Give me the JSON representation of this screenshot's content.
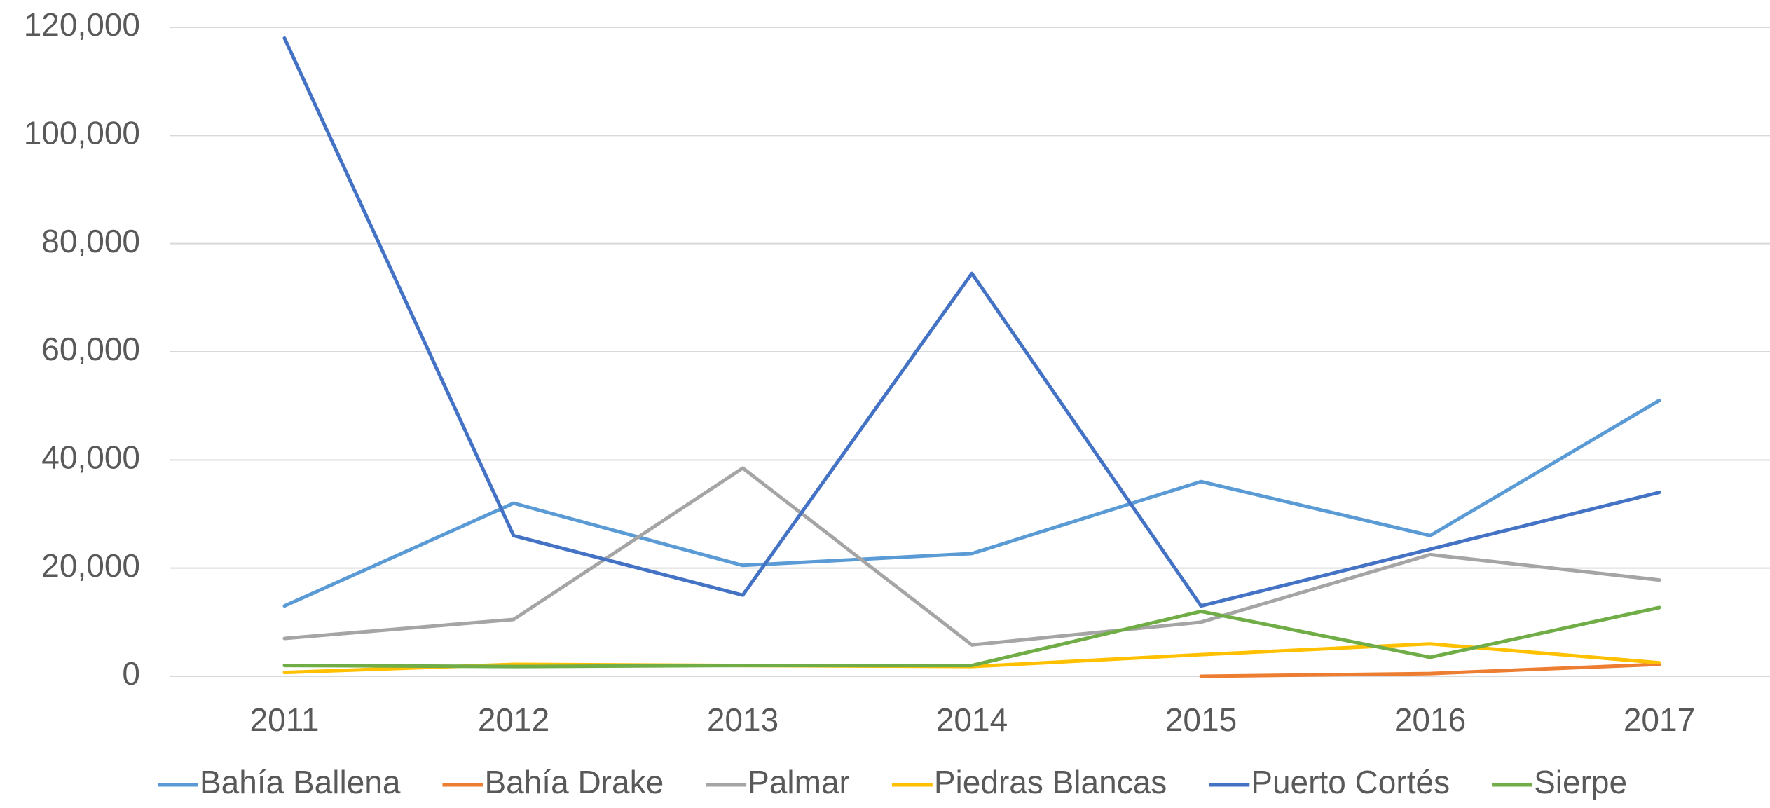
{
  "chart_data": {
    "type": "line",
    "categories": [
      "2011",
      "2012",
      "2013",
      "2014",
      "2015",
      "2016",
      "2017"
    ],
    "series": [
      {
        "name": "Bahía Ballena",
        "color": "#5b9bd5",
        "values": [
          13000,
          32000,
          20500,
          22700,
          36000,
          26000,
          51000
        ]
      },
      {
        "name": "Bahía Drake",
        "color": "#ed7d31",
        "values": [
          null,
          null,
          null,
          null,
          0,
          500,
          2200
        ]
      },
      {
        "name": "Palmar",
        "color": "#a5a5a5",
        "values": [
          7000,
          10500,
          38500,
          5800,
          10000,
          22500,
          17800
        ]
      },
      {
        "name": "Piedras Blancas",
        "color": "#ffc000",
        "values": [
          700,
          2200,
          2000,
          1800,
          4000,
          6000,
          2500
        ]
      },
      {
        "name": "Puerto Cortés",
        "color": "#4472c4",
        "values": [
          118000,
          26000,
          15000,
          74500,
          13000,
          23500,
          34000
        ]
      },
      {
        "name": "Sierpe",
        "color": "#70ad47",
        "values": [
          2000,
          1800,
          2000,
          2000,
          12000,
          3500,
          12700
        ]
      }
    ],
    "ylim": [
      0,
      120000
    ],
    "yticks": [
      0,
      {
        "value": 20000,
        "label": "20,000"
      },
      {
        "value": 40000,
        "label": "40,000"
      },
      {
        "value": 60000,
        "label": "60,000"
      },
      {
        "value": 80000,
        "label": "80,000"
      },
      {
        "value": 100000,
        "label": "100,000"
      },
      {
        "value": 120000,
        "label": "120,000"
      }
    ],
    "grid": true,
    "legend": "bottom"
  }
}
